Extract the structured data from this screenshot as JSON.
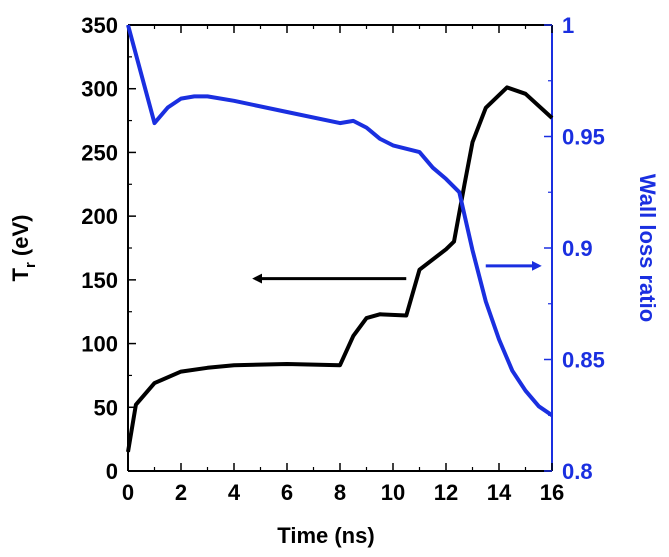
{
  "chart_data": {
    "type": "line",
    "xlabel": "Time (ns)",
    "ylabel_left": {
      "main": "T",
      "sub": "r",
      "unit": " (eV)"
    },
    "ylabel_right": "Wall loss ratio",
    "xlim": [
      0,
      16
    ],
    "ylim_left": [
      0,
      350
    ],
    "ylim_right": [
      0.8,
      1.0
    ],
    "x_ticks": [
      "0",
      "2",
      "4",
      "6",
      "8",
      "10",
      "12",
      "14",
      "16"
    ],
    "y_left_ticks": [
      "0",
      "50",
      "100",
      "150",
      "200",
      "250",
      "300",
      "350"
    ],
    "y_right_ticks": [
      "0.8",
      "0.85",
      "0.9",
      "0.95",
      "1"
    ],
    "grid": false,
    "colors": {
      "left_axis": "#000000",
      "right_axis": "#1a2fe0"
    },
    "series": [
      {
        "axis": "left",
        "color": "#000000",
        "points": [
          [
            0,
            15
          ],
          [
            0.3,
            52
          ],
          [
            1,
            69
          ],
          [
            2,
            78
          ],
          [
            3,
            81
          ],
          [
            4,
            83
          ],
          [
            6,
            84
          ],
          [
            8,
            83
          ],
          [
            8.5,
            106
          ],
          [
            9,
            120
          ],
          [
            9.5,
            123
          ],
          [
            10.5,
            122
          ],
          [
            11,
            158
          ],
          [
            12,
            174
          ],
          [
            12.3,
            180
          ],
          [
            12.7,
            225
          ],
          [
            13,
            258
          ],
          [
            13.5,
            285
          ],
          [
            14.3,
            301
          ],
          [
            15,
            296
          ],
          [
            16,
            277
          ]
        ]
      },
      {
        "axis": "right",
        "color": "#1a2fe0",
        "points": [
          [
            0,
            1.0
          ],
          [
            1,
            0.956
          ],
          [
            1.5,
            0.963
          ],
          [
            2,
            0.967
          ],
          [
            2.5,
            0.968
          ],
          [
            3,
            0.968
          ],
          [
            4,
            0.966
          ],
          [
            6,
            0.961
          ],
          [
            8,
            0.956
          ],
          [
            8.5,
            0.957
          ],
          [
            9,
            0.954
          ],
          [
            9.5,
            0.949
          ],
          [
            10,
            0.946
          ],
          [
            11,
            0.943
          ],
          [
            11.5,
            0.936
          ],
          [
            12,
            0.931
          ],
          [
            12.5,
            0.925
          ],
          [
            13,
            0.899
          ],
          [
            13.5,
            0.876
          ],
          [
            14,
            0.859
          ],
          [
            14.5,
            0.845
          ],
          [
            15,
            0.836
          ],
          [
            15.5,
            0.829
          ],
          [
            16,
            0.825
          ]
        ]
      }
    ],
    "annotations": [
      {
        "type": "arrow",
        "color": "#000000",
        "from": [
          10.5,
          151
        ],
        "to": [
          4.8,
          151
        ]
      },
      {
        "type": "arrow",
        "color": "#1a2fe0",
        "from": [
          13.5,
          0.892
        ],
        "to": [
          15.5,
          0.892
        ],
        "axis": "right"
      }
    ]
  }
}
